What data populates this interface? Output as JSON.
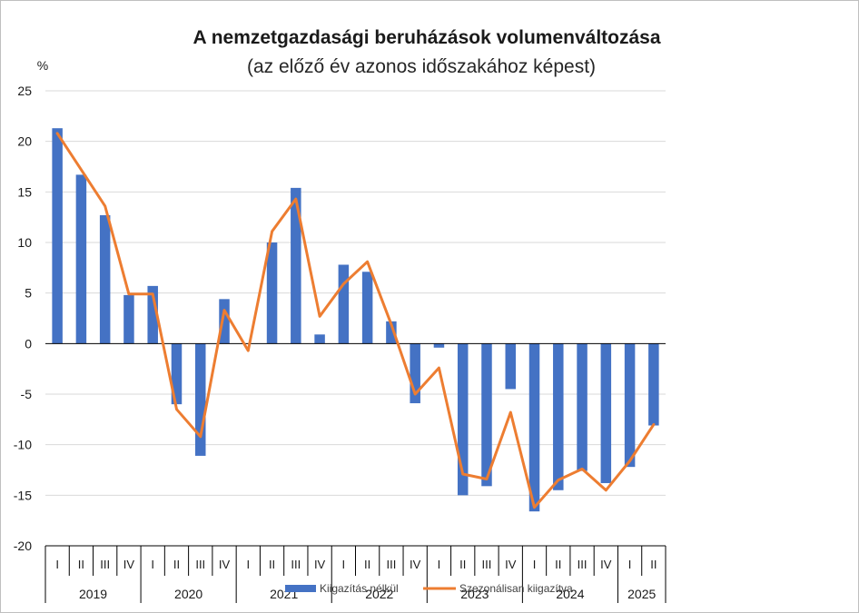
{
  "chart_data": {
    "type": "bar",
    "title": "A nemzetgazdasági beruházások volumenváltozása",
    "subtitle": "(az előző év azonos időszakához képest)",
    "ylabel": "%",
    "ylim": [
      -20,
      25
    ],
    "yticks": [
      25,
      20,
      15,
      10,
      5,
      0,
      -5,
      -10,
      -15,
      -20
    ],
    "grid": true,
    "legend_position": "bottom",
    "categories": [
      "I",
      "II",
      "III",
      "IV",
      "I",
      "II",
      "III",
      "IV",
      "I",
      "II",
      "III",
      "IV",
      "I",
      "II",
      "III",
      "IV",
      "I",
      "II",
      "III",
      "IV",
      "I",
      "II",
      "III",
      "IV",
      "I",
      "II"
    ],
    "year_groups": [
      {
        "label": "2019",
        "count": 4
      },
      {
        "label": "2020",
        "count": 4
      },
      {
        "label": "2021",
        "count": 4
      },
      {
        "label": "2022",
        "count": 4
      },
      {
        "label": "2023",
        "count": 4
      },
      {
        "label": "2024",
        "count": 4
      },
      {
        "label": "2025",
        "count": 2
      }
    ],
    "series": [
      {
        "name": "Kiigazítás nélkül",
        "kind": "bar",
        "color": "#4472c4",
        "values": [
          21.3,
          16.7,
          12.7,
          4.8,
          5.7,
          -6.0,
          -11.1,
          4.4,
          0.0,
          10.0,
          15.4,
          0.9,
          7.8,
          7.1,
          2.2,
          -5.9,
          -0.4,
          -15.0,
          -14.1,
          -4.5,
          -16.6,
          -14.5,
          -12.6,
          -13.8,
          -12.2,
          -8.1
        ]
      },
      {
        "name": "Szezonálisan kiigazítva",
        "kind": "line",
        "color": "#ed7d31",
        "values": [
          20.8,
          17.2,
          13.6,
          4.9,
          4.9,
          -6.5,
          -9.2,
          3.3,
          -0.7,
          11.1,
          14.3,
          2.7,
          5.9,
          8.1,
          1.9,
          -5.0,
          -2.4,
          -12.9,
          -13.4,
          -6.8,
          -16.2,
          -13.5,
          -12.4,
          -14.5,
          -11.6,
          -8.0
        ]
      }
    ]
  }
}
